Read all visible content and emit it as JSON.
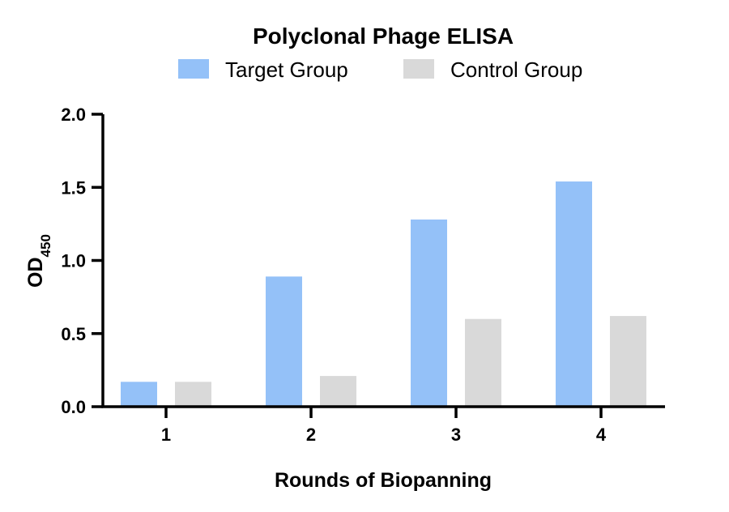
{
  "chart_data": {
    "type": "bar",
    "title": "Polyclonal Phage ELISA",
    "xlabel": "Rounds of Biopanning",
    "ylabel": "OD",
    "ylabel_subscript": "450",
    "categories": [
      "1",
      "2",
      "3",
      "4"
    ],
    "series": [
      {
        "name": "Target Group",
        "color": "#94c1f8",
        "values": [
          0.17,
          0.89,
          1.28,
          1.54
        ]
      },
      {
        "name": "Control Group",
        "color": "#d9d9d9",
        "values": [
          0.17,
          0.21,
          0.6,
          0.62
        ]
      }
    ],
    "ylim": [
      0,
      2.0
    ],
    "yticks": [
      "0.0",
      "0.5",
      "1.0",
      "1.5",
      "2.0"
    ],
    "ytick_values": [
      0,
      0.5,
      1.0,
      1.5,
      2.0
    ],
    "grid": false,
    "legend_position": "top"
  }
}
